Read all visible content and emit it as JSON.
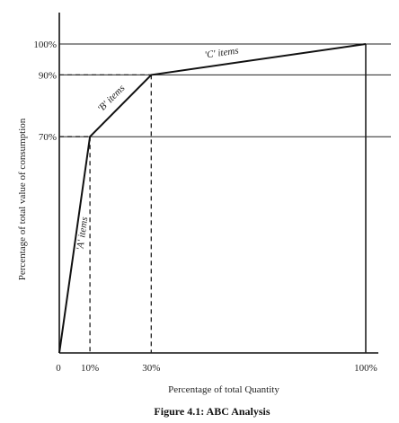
{
  "chart_data": {
    "type": "line",
    "title": "Figure 4.1:  ABC Analysis",
    "xlabel": "Percentage of total Quantity",
    "ylabel": "Percentage of  total   value of consumption",
    "xlim": [
      0,
      100
    ],
    "ylim": [
      0,
      100
    ],
    "x_ticks": [
      {
        "value": 0,
        "label": "0"
      },
      {
        "value": 10,
        "label": "10%"
      },
      {
        "value": 30,
        "label": "30%"
      },
      {
        "value": 100,
        "label": "100%"
      }
    ],
    "y_ticks": [
      {
        "value": 70,
        "label": "70%"
      },
      {
        "value": 90,
        "label": "90%"
      },
      {
        "value": 100,
        "label": "100%"
      }
    ],
    "x": [
      0,
      10,
      30,
      100
    ],
    "y": [
      0,
      70,
      90,
      100
    ],
    "annotations": [
      {
        "text": "'A' items",
        "from": 0,
        "to": 1
      },
      {
        "text": "'B' items",
        "from": 1,
        "to": 2
      },
      {
        "text": "'C' items",
        "from": 2,
        "to": 3
      }
    ],
    "reference_lines": [
      70,
      90,
      100
    ],
    "grid": false,
    "legend": "none"
  }
}
